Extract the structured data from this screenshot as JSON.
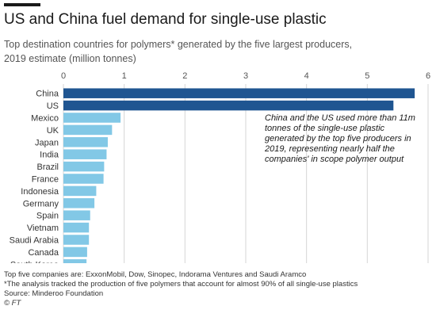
{
  "title": "US and China fuel demand for single-use plastic",
  "subtitle_line1": "Top destination countries for polymers* generated by the five largest producers,",
  "subtitle_line2": "2019 estimate (million tonnes)",
  "annotation": "China and the US used more than 11m tonnes of the single-use plastic generated by the top five producers in 2019, representing nearly half the companies' in scope polymer output",
  "footer": {
    "companies": "Top five companies are: ExxonMobil, Dow, Sinopec, Indorama Ventures and Saudi Aramco",
    "note": "*The analysis tracked the production of five polymers that account for almost 90% of all single-use plastics",
    "source": "Source: Minderoo Foundation",
    "credit": "© FT"
  },
  "colors": {
    "highlight": "#1f5591",
    "default": "#82c8e6",
    "grid": "#d6d6d6"
  },
  "chart_data": {
    "type": "bar",
    "orientation": "horizontal",
    "categories": [
      "China",
      "US",
      "Mexico",
      "UK",
      "Japan",
      "India",
      "Brazil",
      "France",
      "Indonesia",
      "Germany",
      "Spain",
      "Vietnam",
      "Saudi Arabia",
      "Canada",
      "South Korea"
    ],
    "values": [
      5.78,
      5.43,
      0.94,
      0.8,
      0.73,
      0.71,
      0.67,
      0.66,
      0.54,
      0.51,
      0.44,
      0.42,
      0.42,
      0.39,
      0.38
    ],
    "highlighted": [
      "China",
      "US"
    ],
    "xlim": [
      0,
      6
    ],
    "xticks": [
      0,
      1,
      2,
      3,
      4,
      5,
      6
    ],
    "grid": true,
    "xaxis_position": "top"
  }
}
